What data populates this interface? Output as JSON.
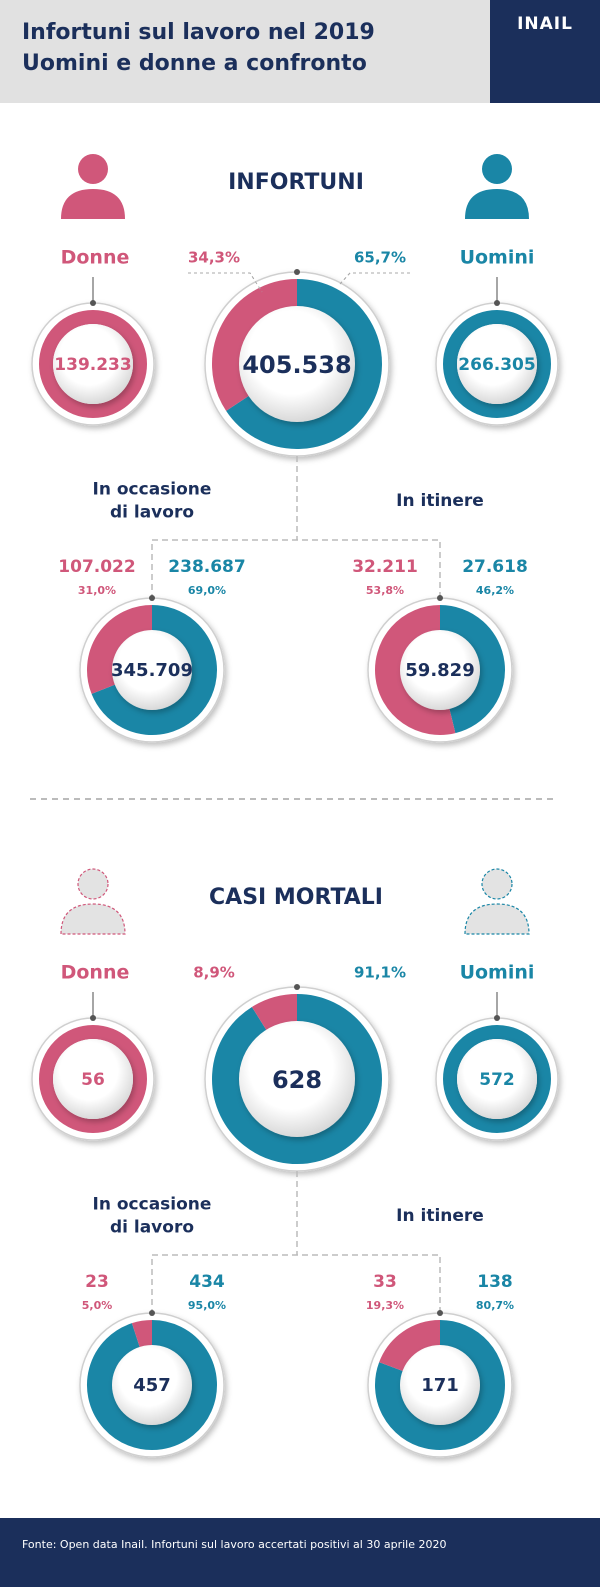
{
  "header": {
    "title_lines": [
      "Infortuni sul lavoro nel 2019",
      "Uomini e donne a confronto"
    ],
    "logo": "INAIL"
  },
  "sections": [
    {
      "title": "INFORTUNI",
      "women_label": "Donne",
      "men_label": "Uomini",
      "women_total": "139.233",
      "men_total": "266.305",
      "main": {
        "total": "405.538",
        "women_share": {
          "value": 34.3,
          "label": "34,3%"
        },
        "men_share": {
          "value": 65.7,
          "label": "65,7%"
        }
      },
      "sub": [
        {
          "title_lines": [
            "In occasione",
            "di lavoro"
          ],
          "total": "345.709",
          "women_count": "107.022",
          "women_share": {
            "value": 31.0,
            "label": "31,0%"
          },
          "men_count": "238.687",
          "men_share": {
            "value": 69.0,
            "label": "69,0%"
          }
        },
        {
          "title_lines": [
            "In itinere"
          ],
          "total": "59.829",
          "women_count": "32.211",
          "women_share": {
            "value": 53.8,
            "label": "53,8%"
          },
          "men_count": "27.618",
          "men_share": {
            "value": 46.2,
            "label": "46,2%"
          }
        }
      ]
    },
    {
      "title": "CASI MORTALI",
      "women_label": "Donne",
      "men_label": "Uomini",
      "women_total": "56",
      "men_total": "572",
      "main": {
        "total": "628",
        "women_share": {
          "value": 8.9,
          "label": "8,9%"
        },
        "men_share": {
          "value": 91.1,
          "label": "91,1%"
        }
      },
      "sub": [
        {
          "title_lines": [
            "In occasione",
            "di lavoro"
          ],
          "total": "457",
          "women_count": "23",
          "women_share": {
            "value": 5.0,
            "label": "5,0%"
          },
          "men_count": "434",
          "men_share": {
            "value": 95.0,
            "label": "95,0%"
          }
        },
        {
          "title_lines": [
            "In itinere"
          ],
          "total": "171",
          "women_count": "33",
          "women_share": {
            "value": 19.3,
            "label": "19,3%"
          },
          "men_count": "138",
          "men_share": {
            "value": 80.7,
            "label": "80,7%"
          }
        }
      ]
    }
  ],
  "footer": "Fonte: Open data Inail. Infortuni sul lavoro accertati positivi al 30 aprile 2020"
}
